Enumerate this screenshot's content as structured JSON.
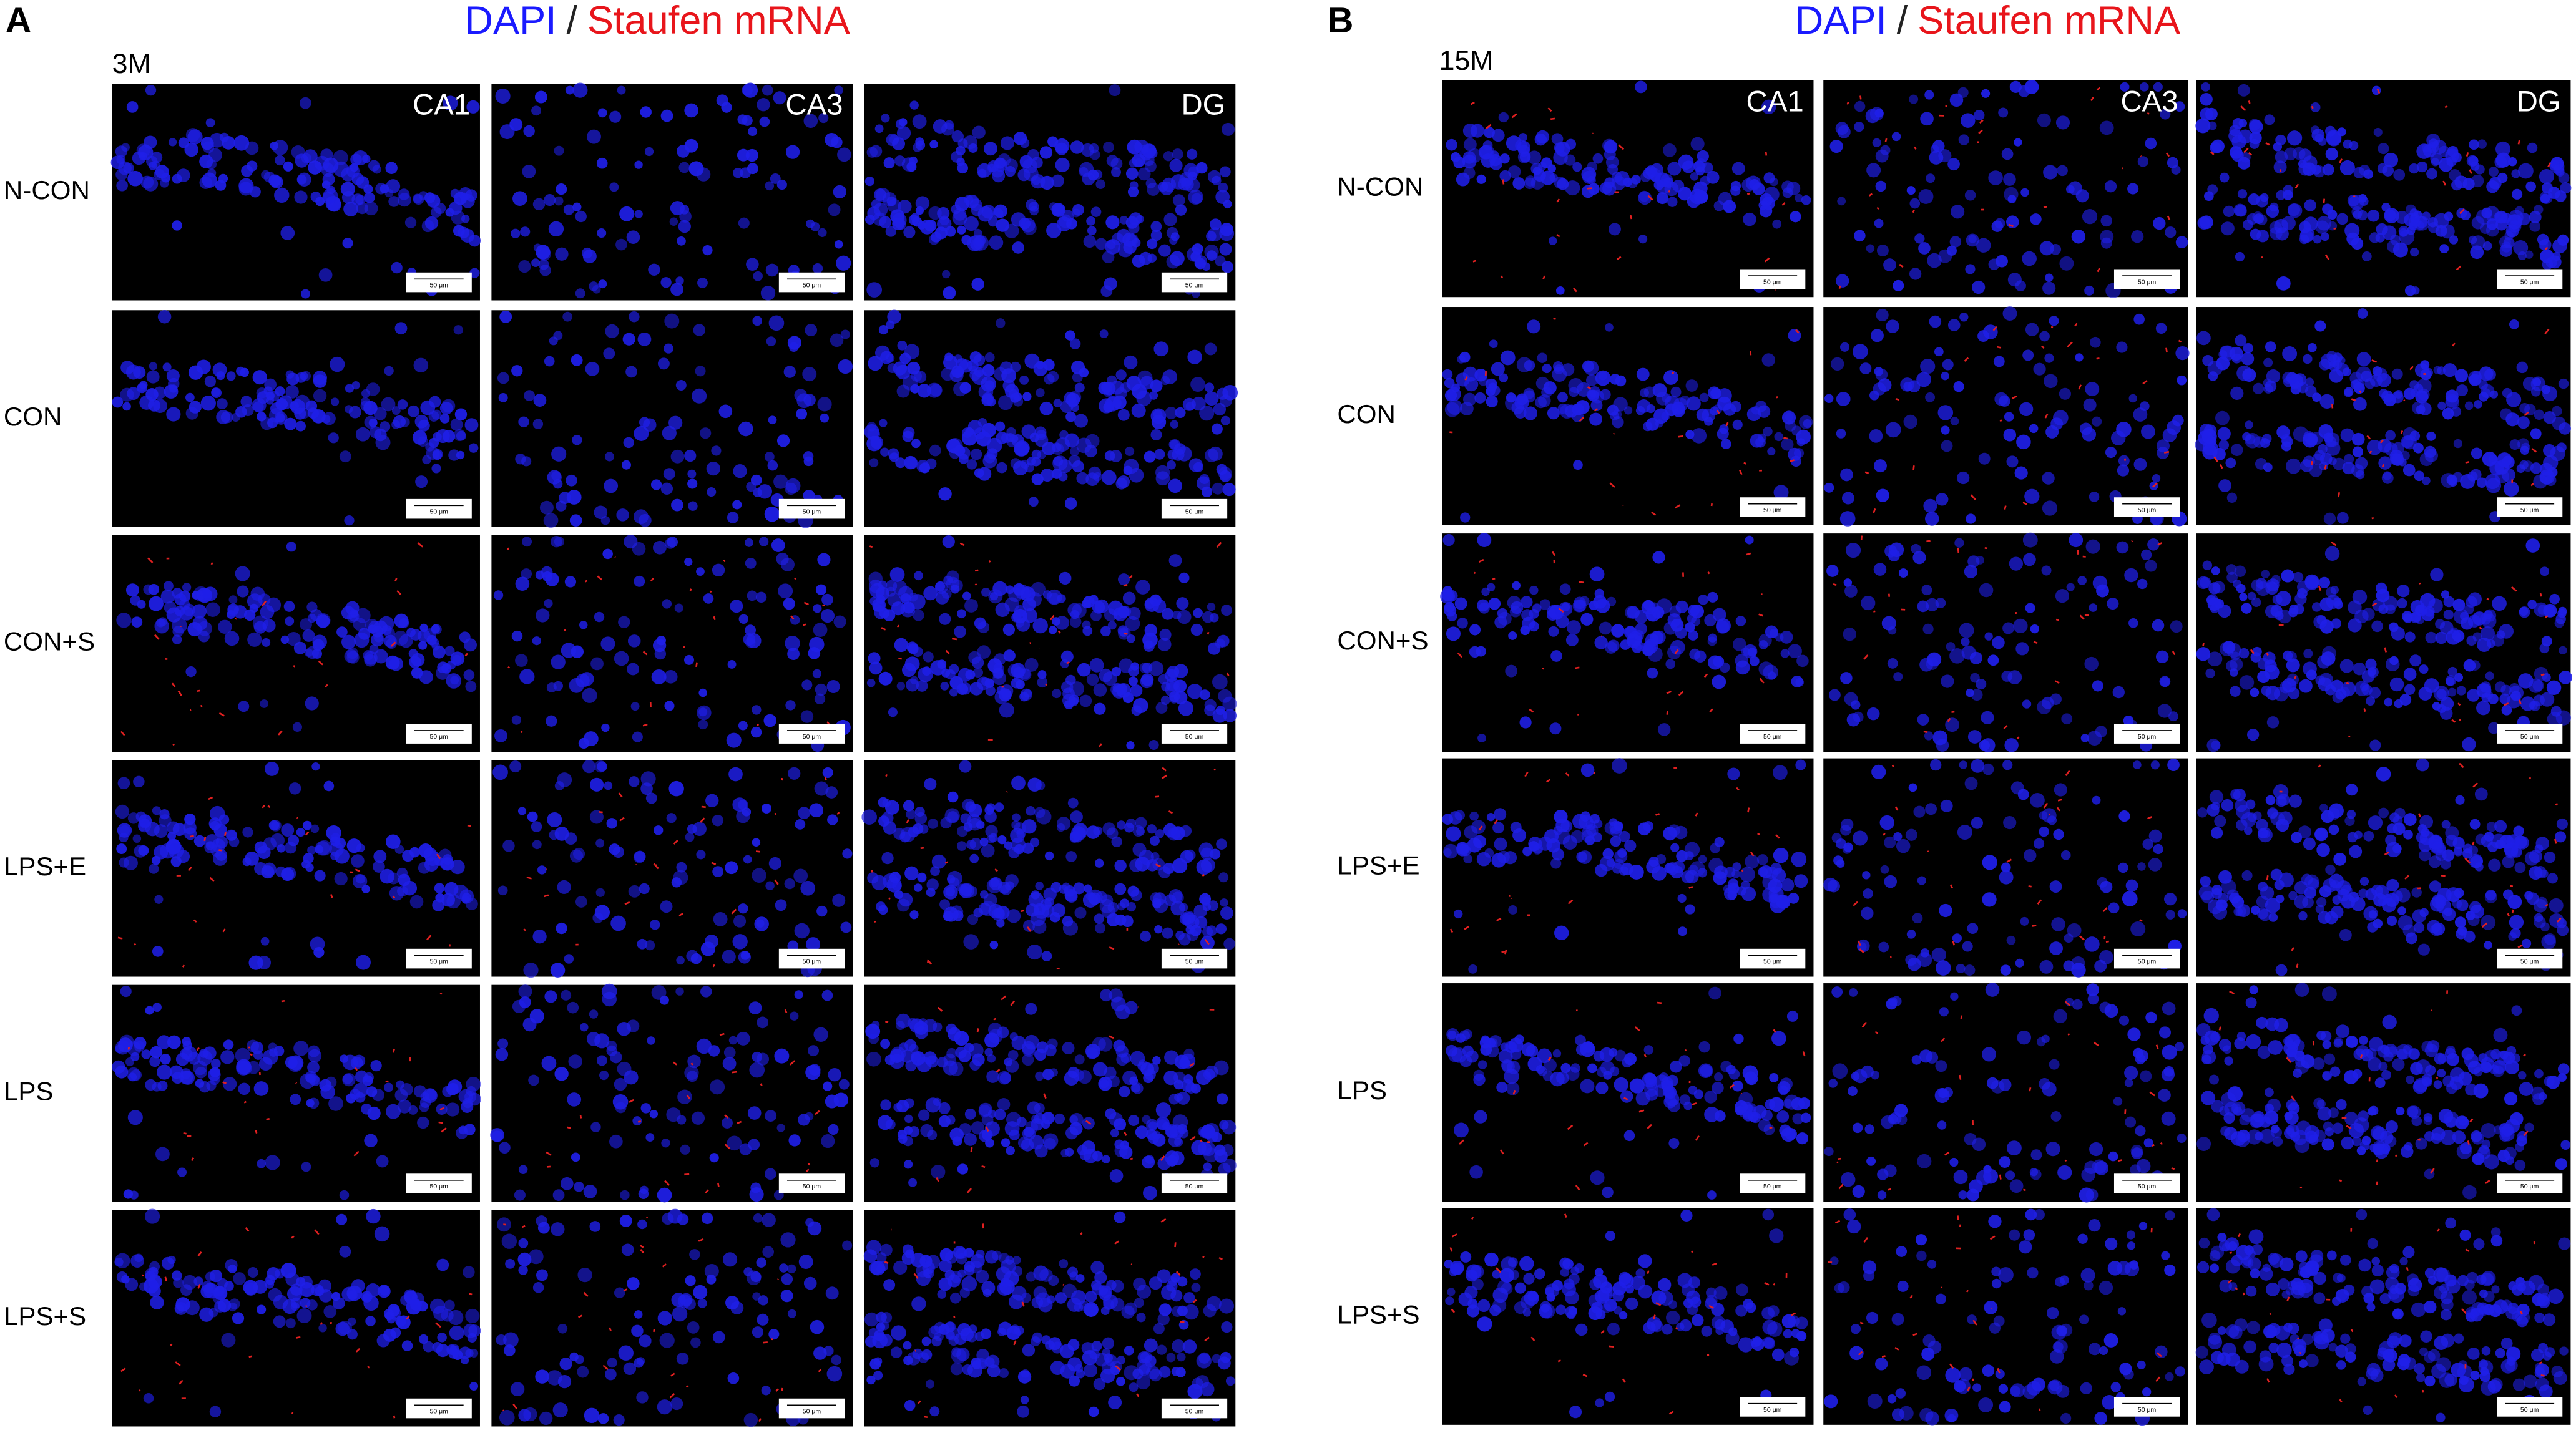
{
  "panels": [
    {
      "label": "A",
      "title": {
        "dapi": "DAPI",
        "separator": "/",
        "staufen": "Staufen mRNA"
      },
      "age": "3M",
      "columns": [
        "CA1",
        "CA3",
        "DG"
      ],
      "rows": [
        "N-CON",
        "CON",
        "CON+S",
        "LPS+E",
        "LPS",
        "LPS+S"
      ],
      "scale_bar": "50 μm"
    },
    {
      "label": "B",
      "title": {
        "dapi": "DAPI",
        "separator": "/",
        "staufen": "Staufen mRNA"
      },
      "age": "15M",
      "columns": [
        "CA1",
        "CA3",
        "DG"
      ],
      "rows": [
        "N-CON",
        "CON",
        "CON+S",
        "LPS+E",
        "LPS",
        "LPS+S"
      ],
      "scale_bar": "50 μm"
    }
  ]
}
